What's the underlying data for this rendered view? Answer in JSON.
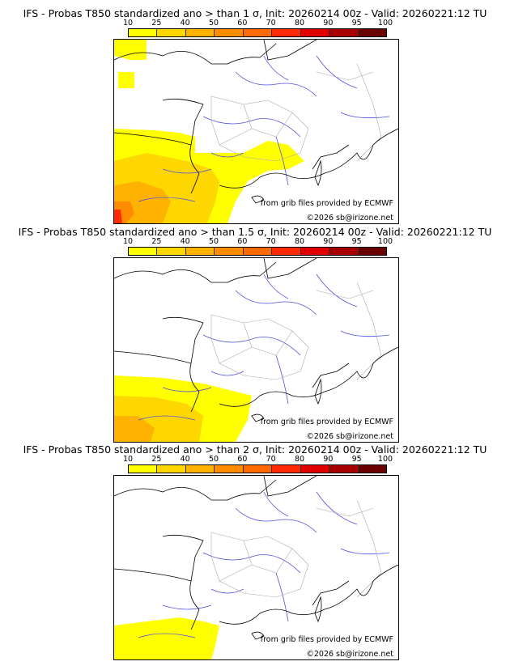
{
  "panels": [
    {
      "title": "IFS - Probas T850  standardized ano > than 1 σ, Init: 20260214 00z - Valid: 20260221:12 TU"
    },
    {
      "title": "IFS - Probas T850  standardized ano > than 1.5 σ, Init: 20260214 00z - Valid: 20260221:12 TU"
    },
    {
      "title": "IFS - Probas T850  standardized ano > than 2 σ, Init: 20260214 00z - Valid: 20260221:12 TU"
    }
  ],
  "colorbar": {
    "ticks": [
      "10",
      "25",
      "40",
      "50",
      "60",
      "70",
      "80",
      "90",
      "95",
      "100"
    ],
    "colors": [
      "#ffff00",
      "#ffd700",
      "#ffb300",
      "#ff8c00",
      "#ff6a00",
      "#ff2a00",
      "#e00000",
      "#a80000",
      "#6a0000"
    ]
  },
  "credit": {
    "source": "from grib files provided by ECMWF",
    "copyright": "©2026 sb@irizone.net"
  }
}
